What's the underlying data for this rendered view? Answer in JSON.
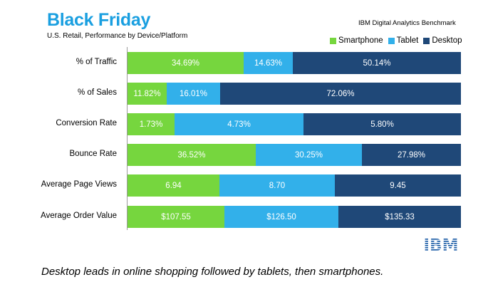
{
  "title": "Black Friday",
  "subtitle": "U.S. Retail, Performance by Device/Platform",
  "source": "IBM Digital Analytics Benchmark",
  "caption": "Desktop leads in online shopping followed by tablets, then smartphones.",
  "logo_text": "IBM",
  "colors": {
    "smartphone": "#76d63e",
    "tablet": "#32b0ea",
    "desktop": "#1f4878",
    "title": "#1a9fe0"
  },
  "chart_data": {
    "type": "bar",
    "stacked": true,
    "normalized": true,
    "orientation": "horizontal",
    "title": "Black Friday",
    "subtitle": "U.S. Retail, Performance by Device/Platform",
    "legend_position": "top-right",
    "categories": [
      "% of Traffic",
      "% of Sales",
      "Conversion Rate",
      "Bounce Rate",
      "Average Page Views",
      "Average Order Value"
    ],
    "series": [
      {
        "name": "Smartphone",
        "values": [
          34.69,
          11.82,
          1.73,
          36.52,
          6.94,
          107.55
        ],
        "labels": [
          "34.69%",
          "11.82%",
          "1.73%",
          "36.52%",
          "6.94",
          "$107.55"
        ]
      },
      {
        "name": "Tablet",
        "values": [
          14.63,
          16.01,
          4.73,
          30.25,
          8.7,
          126.5
        ],
        "labels": [
          "14.63%",
          "16.01%",
          "4.73%",
          "30.25%",
          "8.70",
          "$126.50"
        ]
      },
      {
        "name": "Desktop",
        "values": [
          50.14,
          72.06,
          5.8,
          27.98,
          9.45,
          135.33
        ],
        "labels": [
          "50.14%",
          "72.06%",
          "5.80%",
          "27.98%",
          "9.45",
          "$135.33"
        ]
      }
    ]
  }
}
